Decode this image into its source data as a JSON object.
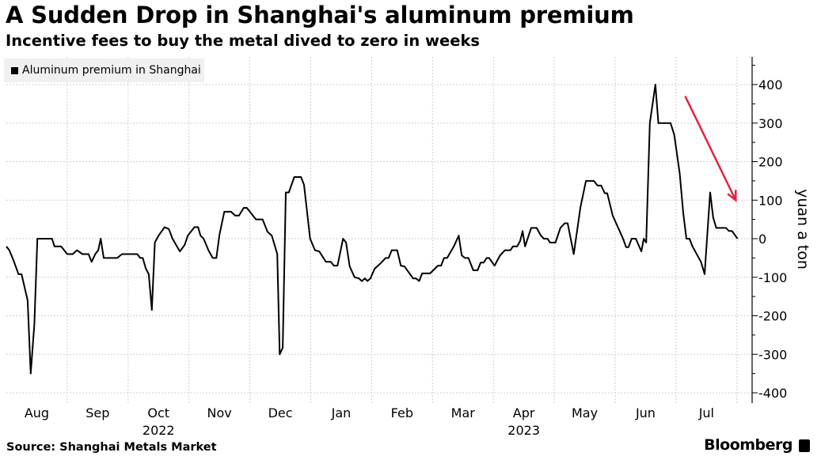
{
  "chart_data": {
    "type": "line",
    "title": "A Sudden Drop in Shanghai's aluminum premium",
    "subtitle": "Incentive fees to buy the metal dived to zero in weeks",
    "xlabel": "",
    "ylabel": "yuan a ton",
    "x_unit": "months since Aug 1, 2022",
    "xlim": [
      0,
      12.25
    ],
    "ylim": [
      -420,
      470
    ],
    "yticks": [
      -400,
      -300,
      -200,
      -100,
      0,
      100,
      200,
      300,
      400
    ],
    "ytick_labels": [
      "-400",
      "-300",
      "-200",
      "-100",
      "0",
      "100",
      "200",
      "300",
      "400"
    ],
    "month_labels": [
      "Aug",
      "Sep",
      "Oct",
      "Nov",
      "Dec",
      "Jan",
      "Feb",
      "Mar",
      "Apr",
      "May",
      "Jun",
      "Jul"
    ],
    "year_labels": [
      {
        "label": "2022",
        "month_index": 2
      },
      {
        "label": "2023",
        "month_index": 8
      }
    ],
    "grid": true,
    "legend": {
      "placement": "top-left",
      "entries": [
        "Aluminum premium in Shanghai"
      ]
    },
    "annotation": {
      "type": "arrow",
      "color": "#e5233f",
      "from": [
        11.15,
        370
      ],
      "to": [
        11.98,
        100
      ]
    },
    "series": [
      {
        "name": "Aluminum premium in Shanghai",
        "color": "#000000",
        "points": [
          [
            0,
            -20
          ],
          [
            0.05,
            -30
          ],
          [
            0.12,
            -57
          ],
          [
            0.2,
            -92
          ],
          [
            0.25,
            -92
          ],
          [
            0.35,
            -160
          ],
          [
            0.4,
            -350
          ],
          [
            0.46,
            -222
          ],
          [
            0.51,
            0
          ],
          [
            0.75,
            0
          ],
          [
            0.79,
            -20
          ],
          [
            0.9,
            -20
          ],
          [
            1.0,
            -40
          ],
          [
            1.09,
            -40
          ],
          [
            1.16,
            -30
          ],
          [
            1.25,
            -40
          ],
          [
            1.35,
            -40
          ],
          [
            1.4,
            -60
          ],
          [
            1.46,
            -40
          ],
          [
            1.51,
            -30
          ],
          [
            1.55,
            0
          ],
          [
            1.6,
            -50
          ],
          [
            1.82,
            -50
          ],
          [
            1.9,
            -40
          ],
          [
            2.15,
            -40
          ],
          [
            2.2,
            -50
          ],
          [
            2.24,
            -50
          ],
          [
            2.29,
            -77
          ],
          [
            2.34,
            -92
          ],
          [
            2.39,
            -185
          ],
          [
            2.44,
            -10
          ],
          [
            2.5,
            8
          ],
          [
            2.6,
            30
          ],
          [
            2.67,
            25
          ],
          [
            2.73,
            0
          ],
          [
            2.85,
            -33
          ],
          [
            2.93,
            -16
          ],
          [
            2.98,
            8
          ],
          [
            3.09,
            30
          ],
          [
            3.15,
            30
          ],
          [
            3.19,
            8
          ],
          [
            3.24,
            0
          ],
          [
            3.32,
            -30
          ],
          [
            3.39,
            -50
          ],
          [
            3.45,
            -50
          ],
          [
            3.5,
            10
          ],
          [
            3.58,
            70
          ],
          [
            3.69,
            70
          ],
          [
            3.76,
            60
          ],
          [
            3.82,
            60
          ],
          [
            3.9,
            80
          ],
          [
            3.95,
            80
          ],
          [
            4.1,
            50
          ],
          [
            4.21,
            50
          ],
          [
            4.29,
            18
          ],
          [
            4.36,
            8
          ],
          [
            4.45,
            -40
          ],
          [
            4.49,
            -300
          ],
          [
            4.54,
            -283
          ],
          [
            4.59,
            120
          ],
          [
            4.64,
            120
          ],
          [
            4.73,
            160
          ],
          [
            4.84,
            160
          ],
          [
            4.89,
            140
          ],
          [
            4.99,
            0
          ],
          [
            5.07,
            -30
          ],
          [
            5.14,
            -33
          ],
          [
            5.25,
            -60
          ],
          [
            5.33,
            -60
          ],
          [
            5.38,
            -70
          ],
          [
            5.44,
            -70
          ],
          [
            5.53,
            0
          ],
          [
            5.58,
            -10
          ],
          [
            5.64,
            -72
          ],
          [
            5.72,
            -100
          ],
          [
            5.79,
            -103
          ],
          [
            5.84,
            -110
          ],
          [
            5.89,
            -103
          ],
          [
            5.93,
            -110
          ],
          [
            5.98,
            -103
          ],
          [
            6.05,
            -78
          ],
          [
            6.16,
            -62
          ],
          [
            6.23,
            -50
          ],
          [
            6.28,
            -50
          ],
          [
            6.33,
            -30
          ],
          [
            6.42,
            -30
          ],
          [
            6.48,
            -70
          ],
          [
            6.54,
            -72
          ],
          [
            6.68,
            -103
          ],
          [
            6.73,
            -103
          ],
          [
            6.78,
            -110
          ],
          [
            6.83,
            -90
          ],
          [
            6.96,
            -90
          ],
          [
            7.09,
            -70
          ],
          [
            7.14,
            -70
          ],
          [
            7.19,
            -50
          ],
          [
            7.24,
            -50
          ],
          [
            7.35,
            -20
          ],
          [
            7.43,
            8
          ],
          [
            7.48,
            -43
          ],
          [
            7.53,
            -50
          ],
          [
            7.59,
            -50
          ],
          [
            7.67,
            -82
          ],
          [
            7.74,
            -82
          ],
          [
            7.79,
            -62
          ],
          [
            7.84,
            -62
          ],
          [
            7.89,
            -50
          ],
          [
            7.93,
            -50
          ],
          [
            8.02,
            -70
          ],
          [
            8.11,
            -43
          ],
          [
            8.19,
            -30
          ],
          [
            8.28,
            -30
          ],
          [
            8.32,
            -20
          ],
          [
            8.39,
            -20
          ],
          [
            8.44,
            -6
          ],
          [
            8.48,
            20
          ],
          [
            8.52,
            -20
          ],
          [
            8.62,
            28
          ],
          [
            8.71,
            28
          ],
          [
            8.78,
            8
          ],
          [
            8.83,
            0
          ],
          [
            8.89,
            0
          ],
          [
            8.93,
            -10
          ],
          [
            9.02,
            -10
          ],
          [
            9.1,
            28
          ],
          [
            9.17,
            40
          ],
          [
            9.22,
            40
          ],
          [
            9.32,
            -40
          ],
          [
            9.43,
            82
          ],
          [
            9.52,
            150
          ],
          [
            9.65,
            150
          ],
          [
            9.71,
            138
          ],
          [
            9.77,
            138
          ],
          [
            9.83,
            118
          ],
          [
            9.87,
            118
          ],
          [
            9.96,
            60
          ],
          [
            10.13,
            0
          ],
          [
            10.18,
            -22
          ],
          [
            10.22,
            -22
          ],
          [
            10.27,
            0
          ],
          [
            10.34,
            0
          ],
          [
            10.43,
            -33
          ],
          [
            10.47,
            0
          ],
          [
            10.51,
            -10
          ],
          [
            10.57,
            300
          ],
          [
            10.66,
            400
          ],
          [
            10.71,
            300
          ],
          [
            10.91,
            300
          ],
          [
            10.97,
            270
          ],
          [
            11.06,
            170
          ],
          [
            11.12,
            65
          ],
          [
            11.17,
            0
          ],
          [
            11.22,
            0
          ],
          [
            11.27,
            -20
          ],
          [
            11.41,
            -60
          ],
          [
            11.47,
            -92
          ],
          [
            11.56,
            120
          ],
          [
            11.61,
            55
          ],
          [
            11.66,
            28
          ],
          [
            11.82,
            28
          ],
          [
            11.87,
            20
          ],
          [
            11.92,
            20
          ],
          [
            12.01,
            0
          ]
        ]
      }
    ]
  },
  "footer": {
    "source": "Source: Shanghai Metals Market",
    "brand": "Bloomberg"
  }
}
